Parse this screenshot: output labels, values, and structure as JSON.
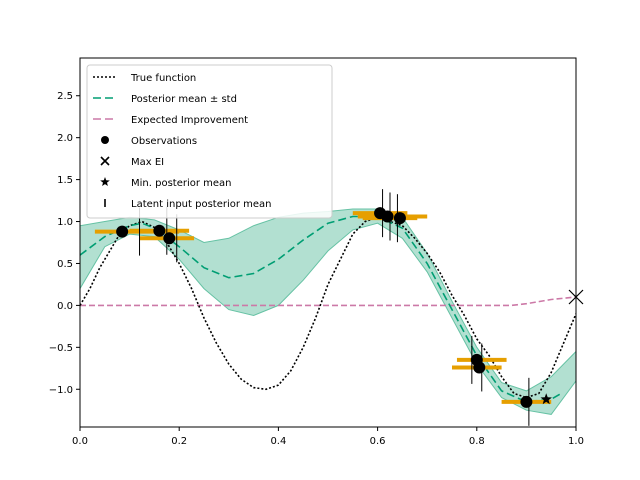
{
  "chart_data": {
    "type": "line",
    "title": "",
    "xlabel": "",
    "ylabel": "",
    "xlim": [
      0.0,
      1.0
    ],
    "ylim": [
      -1.45,
      2.95
    ],
    "grid": false,
    "legend_placement": "top-left",
    "x_ticks": [
      {
        "value": 0.0,
        "label": "0.0"
      },
      {
        "value": 0.2,
        "label": "0.2"
      },
      {
        "value": 0.4,
        "label": "0.4"
      },
      {
        "value": 0.6,
        "label": "0.6"
      },
      {
        "value": 0.8,
        "label": "0.8"
      },
      {
        "value": 1.0,
        "label": "1.0"
      }
    ],
    "y_ticks": [
      {
        "value": -1.0,
        "label": "−1.0"
      },
      {
        "value": -0.5,
        "label": "−0.5"
      },
      {
        "value": 0.0,
        "label": "0.0"
      },
      {
        "value": 0.5,
        "label": "0.5"
      },
      {
        "value": 1.0,
        "label": "1.0"
      },
      {
        "value": 1.5,
        "label": "1.5"
      },
      {
        "value": 2.0,
        "label": "2.0"
      },
      {
        "value": 2.5,
        "label": "2.5"
      }
    ],
    "legend": [
      {
        "label": "True function",
        "marker": "dotted-line",
        "color": "#000000"
      },
      {
        "label": "Posterior mean ± std",
        "marker": "dashed-line",
        "color": "#009e73"
      },
      {
        "label": "Expected Improvement",
        "marker": "dashed-line",
        "color": "#cc79a7"
      },
      {
        "label": "Observations",
        "marker": "circle",
        "color": "#000000"
      },
      {
        "label": "Max EI",
        "marker": "x",
        "color": "#000000"
      },
      {
        "label": "Min. posterior mean",
        "marker": "star",
        "color": "#000000"
      },
      {
        "label": "Latent input posterior mean",
        "marker": "vline",
        "color": "#000000"
      }
    ],
    "series": [
      {
        "name": "True function",
        "color": "#000000",
        "style": "dotted",
        "x": [
          0.0,
          0.02,
          0.04,
          0.06,
          0.08,
          0.1,
          0.125,
          0.15,
          0.175,
          0.2,
          0.225,
          0.25,
          0.275,
          0.3,
          0.325,
          0.35,
          0.375,
          0.4,
          0.425,
          0.45,
          0.475,
          0.5,
          0.525,
          0.55,
          0.575,
          0.6,
          0.625,
          0.65,
          0.675,
          0.7,
          0.725,
          0.75,
          0.775,
          0.8,
          0.825,
          0.85,
          0.875,
          0.9,
          0.925,
          0.95,
          0.975,
          1.0
        ],
        "y": [
          0.0,
          0.2,
          0.45,
          0.65,
          0.85,
          0.95,
          1.0,
          0.93,
          0.75,
          0.5,
          0.2,
          -0.15,
          -0.45,
          -0.7,
          -0.88,
          -0.98,
          -1.0,
          -0.95,
          -0.78,
          -0.5,
          -0.15,
          0.25,
          0.55,
          0.85,
          1.0,
          1.05,
          1.0,
          0.95,
          0.8,
          0.62,
          0.4,
          0.12,
          -0.12,
          -0.4,
          -0.6,
          -0.85,
          -1.05,
          -1.1,
          -1.05,
          -0.8,
          -0.45,
          -0.1
        ]
      },
      {
        "name": "Posterior mean",
        "color": "#009e73",
        "style": "dashed",
        "x": [
          0.0,
          0.05,
          0.1,
          0.125,
          0.15,
          0.2,
          0.25,
          0.3,
          0.35,
          0.4,
          0.45,
          0.5,
          0.55,
          0.6,
          0.65,
          0.7,
          0.75,
          0.8,
          0.85,
          0.9,
          0.95,
          0.97
        ],
        "y": [
          0.6,
          0.82,
          0.95,
          0.98,
          0.92,
          0.7,
          0.45,
          0.33,
          0.38,
          0.55,
          0.78,
          0.98,
          1.06,
          1.06,
          0.92,
          0.5,
          -0.05,
          -0.6,
          -1.02,
          -1.15,
          -1.12,
          -1.05
        ],
        "band_x": [
          0.0,
          0.05,
          0.1,
          0.15,
          0.2,
          0.25,
          0.3,
          0.35,
          0.4,
          0.45,
          0.5,
          0.55,
          0.6,
          0.65,
          0.7,
          0.75,
          0.8,
          0.85,
          0.9,
          0.95,
          1.0
        ],
        "band_lower": [
          0.2,
          0.7,
          0.85,
          0.82,
          0.55,
          0.2,
          -0.05,
          -0.12,
          0.0,
          0.3,
          0.65,
          0.9,
          0.98,
          0.8,
          0.4,
          -0.15,
          -0.7,
          -1.1,
          -1.25,
          -1.3,
          -0.9
        ],
        "band_upper": [
          0.95,
          1.0,
          1.05,
          1.02,
          0.9,
          0.75,
          0.8,
          0.95,
          1.05,
          1.1,
          1.12,
          1.15,
          1.15,
          1.05,
          0.62,
          0.05,
          -0.5,
          -0.92,
          -1.02,
          -0.85,
          -0.55
        ]
      },
      {
        "name": "Expected Improvement",
        "color": "#cc79a7",
        "style": "dashed",
        "x": [
          0.0,
          0.1,
          0.2,
          0.3,
          0.4,
          0.5,
          0.6,
          0.7,
          0.8,
          0.87,
          0.9,
          0.95,
          1.0
        ],
        "y": [
          0.0,
          0.0,
          0.0,
          0.0,
          0.0,
          0.0,
          0.0,
          0.0,
          0.0,
          0.0,
          0.02,
          0.07,
          0.1
        ]
      }
    ],
    "observations": [
      {
        "x": 0.085,
        "y": 0.88
      },
      {
        "x": 0.16,
        "y": 0.89
      },
      {
        "x": 0.18,
        "y": 0.8
      },
      {
        "x": 0.605,
        "y": 1.1
      },
      {
        "x": 0.62,
        "y": 1.06
      },
      {
        "x": 0.645,
        "y": 1.04
      },
      {
        "x": 0.8,
        "y": -0.65
      },
      {
        "x": 0.805,
        "y": -0.74
      },
      {
        "x": 0.9,
        "y": -1.15
      }
    ],
    "observation_input_spread": [
      {
        "x0": 0.03,
        "x1": 0.2,
        "y": 0.88
      },
      {
        "x0": 0.1,
        "x1": 0.22,
        "y": 0.89
      },
      {
        "x0": 0.12,
        "x1": 0.23,
        "y": 0.8
      },
      {
        "x0": 0.55,
        "x1": 0.66,
        "y": 1.1
      },
      {
        "x0": 0.56,
        "x1": 0.7,
        "y": 1.06
      },
      {
        "x0": 0.57,
        "x1": 0.68,
        "y": 1.04
      },
      {
        "x0": 0.76,
        "x1": 0.86,
        "y": -0.65
      },
      {
        "x0": 0.75,
        "x1": 0.85,
        "y": -0.74
      },
      {
        "x0": 0.85,
        "x1": 0.95,
        "y": -1.15
      }
    ],
    "max_ei": {
      "x": 1.0,
      "y": 0.1
    },
    "min_posterior_mean": {
      "x": 0.94,
      "y": -1.12
    },
    "latent_input_posterior_mean": [
      0.12,
      0.175,
      0.195,
      0.61,
      0.625,
      0.64,
      0.79,
      0.81,
      0.905
    ],
    "colors": {
      "true_function": "#000000",
      "posterior_mean": "#009e73",
      "posterior_band": "#66c2a4",
      "expected_improvement": "#cc79a7",
      "input_spread": "#e69f00"
    }
  }
}
